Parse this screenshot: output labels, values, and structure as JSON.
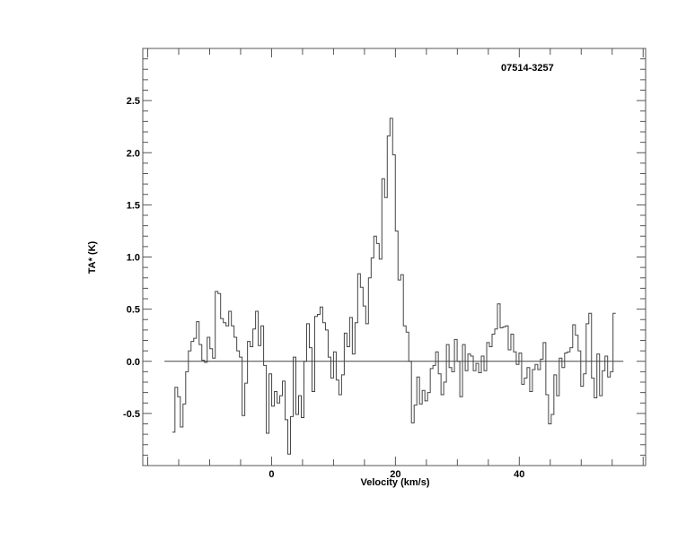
{
  "chart_data": {
    "type": "line",
    "style": "step",
    "title": "07514-3257",
    "xlabel": "Velocity (km/s)",
    "ylabel": "TA* (K)",
    "xlim": [
      -20.8,
      60.4
    ],
    "ylim": [
      -1.0,
      3.0
    ],
    "x_ticks": [
      0,
      20,
      40
    ],
    "x_tick_labels": [
      "0",
      "20",
      "40"
    ],
    "y_ticks": [
      -0.5,
      0.0,
      0.5,
      1.0,
      1.5,
      2.0,
      2.5
    ],
    "y_tick_labels": [
      "-0.5",
      "0.0",
      "0.5",
      "1.0",
      "1.5",
      "2.0",
      "2.5"
    ],
    "grid": false,
    "baseline": {
      "value": 0.0,
      "x_range": [
        -17.3,
        56.8
      ]
    },
    "x_start": -16.04,
    "channel_width": 0.434,
    "values": [
      -0.68,
      -0.25,
      -0.34,
      -0.63,
      -0.41,
      -0.1,
      0.1,
      0.19,
      0.22,
      0.38,
      0.16,
      0.01,
      -0.01,
      0.23,
      0.12,
      0.03,
      0.67,
      0.65,
      0.41,
      0.37,
      0.34,
      0.48,
      0.34,
      0.23,
      0.1,
      0.04,
      -0.52,
      -0.21,
      0.19,
      0.14,
      0.31,
      0.48,
      0.15,
      0.34,
      -0.04,
      -0.69,
      -0.12,
      -0.43,
      -0.29,
      -0.4,
      -0.33,
      -0.19,
      -0.56,
      -0.89,
      -0.53,
      0.04,
      -0.51,
      -0.33,
      -0.54,
      0.0,
      0.36,
      0.13,
      -0.29,
      0.43,
      0.45,
      0.52,
      0.37,
      0.3,
      0.04,
      -0.16,
      0.09,
      -0.18,
      -0.32,
      -0.13,
      0.27,
      0.14,
      0.42,
      0.07,
      0.37,
      0.84,
      0.71,
      0.53,
      0.36,
      0.8,
      0.99,
      1.2,
      1.13,
      0.98,
      1.75,
      1.57,
      2.16,
      2.33,
      1.98,
      1.25,
      0.78,
      0.83,
      0.34,
      0.28,
      0.0,
      -0.59,
      -0.42,
      -0.15,
      -0.41,
      -0.28,
      -0.38,
      -0.3,
      -0.07,
      -0.04,
      0.09,
      -0.12,
      -0.32,
      -0.2,
      0.16,
      -0.06,
      -0.1,
      0.21,
      0.0,
      -0.34,
      0.16,
      -0.09,
      0.07,
      0.05,
      -0.09,
      -0.02,
      -0.11,
      0.05,
      -0.09,
      0.18,
      0.14,
      0.26,
      0.31,
      0.55,
      0.32,
      0.33,
      0.34,
      0.11,
      0.26,
      0.09,
      -0.03,
      0.08,
      -0.22,
      -0.16,
      -0.06,
      -0.29,
      -0.08,
      -0.03,
      -0.08,
      0.02,
      0.18,
      -0.32,
      -0.6,
      -0.51,
      -0.13,
      -0.33,
      0.03,
      -0.06,
      0.08,
      0.09,
      0.13,
      0.35,
      0.25,
      0.1,
      -0.24,
      -0.12,
      0.36,
      0.46,
      -0.16,
      -0.35,
      0.07,
      -0.33,
      -0.09,
      0.05,
      -0.15,
      -0.1,
      0.46
    ],
    "colors": {
      "line": "#444444",
      "axes": "#555555"
    }
  }
}
